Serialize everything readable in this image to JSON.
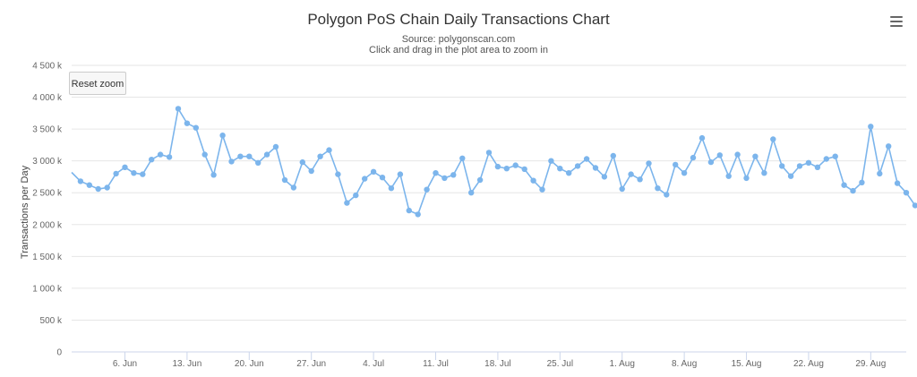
{
  "header": {
    "title": "Polygon PoS Chain Daily Transactions Chart",
    "source": "Source: polygonscan.com",
    "hint": "Click and drag in the plot area to zoom in",
    "menu_icon": "hamburger-menu-icon"
  },
  "controls": {
    "reset_zoom_label": "Reset zoom"
  },
  "chart_data": {
    "type": "line",
    "ylabel": "Transactions per Day",
    "ylim": [
      0,
      4500000
    ],
    "yticks": [
      0,
      500000,
      1000000,
      1500000,
      2000000,
      2500000,
      3000000,
      3500000,
      4000000,
      4500000
    ],
    "ytick_labels": [
      "0",
      "500 k",
      "1 000 k",
      "1 500 k",
      "2 000 k",
      "2 500 k",
      "3 000 k",
      "3 500 k",
      "4 000 k",
      "4 500 k"
    ],
    "x_start": "2022-05-31",
    "x_end": "2022-09-02",
    "xtick_dates": [
      "2022-06-06",
      "2022-06-13",
      "2022-06-20",
      "2022-06-27",
      "2022-07-04",
      "2022-07-11",
      "2022-07-18",
      "2022-07-25",
      "2022-08-01",
      "2022-08-08",
      "2022-08-15",
      "2022-08-22",
      "2022-08-29"
    ],
    "xtick_labels": [
      "6. Jun",
      "13. Jun",
      "20. Jun",
      "27. Jun",
      "4. Jul",
      "11. Jul",
      "18. Jul",
      "25. Jul",
      "1. Aug",
      "8. Aug",
      "15. Aug",
      "22. Aug",
      "29. Aug"
    ],
    "grid": true,
    "line_color": "#7cb5ec",
    "series": [
      {
        "x_first": "2022-05-31",
        "values": [
          2820000,
          2680000,
          2620000,
          2560000,
          2580000,
          2800000,
          2900000,
          2810000,
          2790000,
          3020000,
          3100000,
          3060000,
          3820000,
          3590000,
          3520000,
          3100000,
          2780000,
          3400000,
          2990000,
          3070000,
          3070000,
          2970000,
          3100000,
          3220000,
          2700000,
          2580000,
          2980000,
          2840000,
          3070000,
          3170000,
          2790000,
          2340000,
          2460000,
          2720000,
          2830000,
          2740000,
          2570000,
          2790000,
          2220000,
          2160000,
          2550000,
          2810000,
          2730000,
          2780000,
          3040000,
          2500000,
          2700000,
          3130000,
          2910000,
          2880000,
          2930000,
          2870000,
          2690000,
          2550000,
          3000000,
          2880000,
          2810000,
          2920000,
          3030000,
          2890000,
          2750000,
          3080000,
          2560000,
          2790000,
          2710000,
          2960000,
          2570000,
          2470000,
          2940000,
          2810000,
          3050000,
          3360000,
          2980000,
          3090000,
          2760000,
          3100000,
          2730000,
          3070000,
          2810000,
          3340000,
          2920000,
          2760000,
          2920000,
          2970000,
          2900000,
          3030000,
          3070000,
          2620000,
          2530000,
          2660000,
          3540000,
          2800000,
          3230000,
          2650000,
          2500000,
          2300000
        ]
      }
    ]
  }
}
